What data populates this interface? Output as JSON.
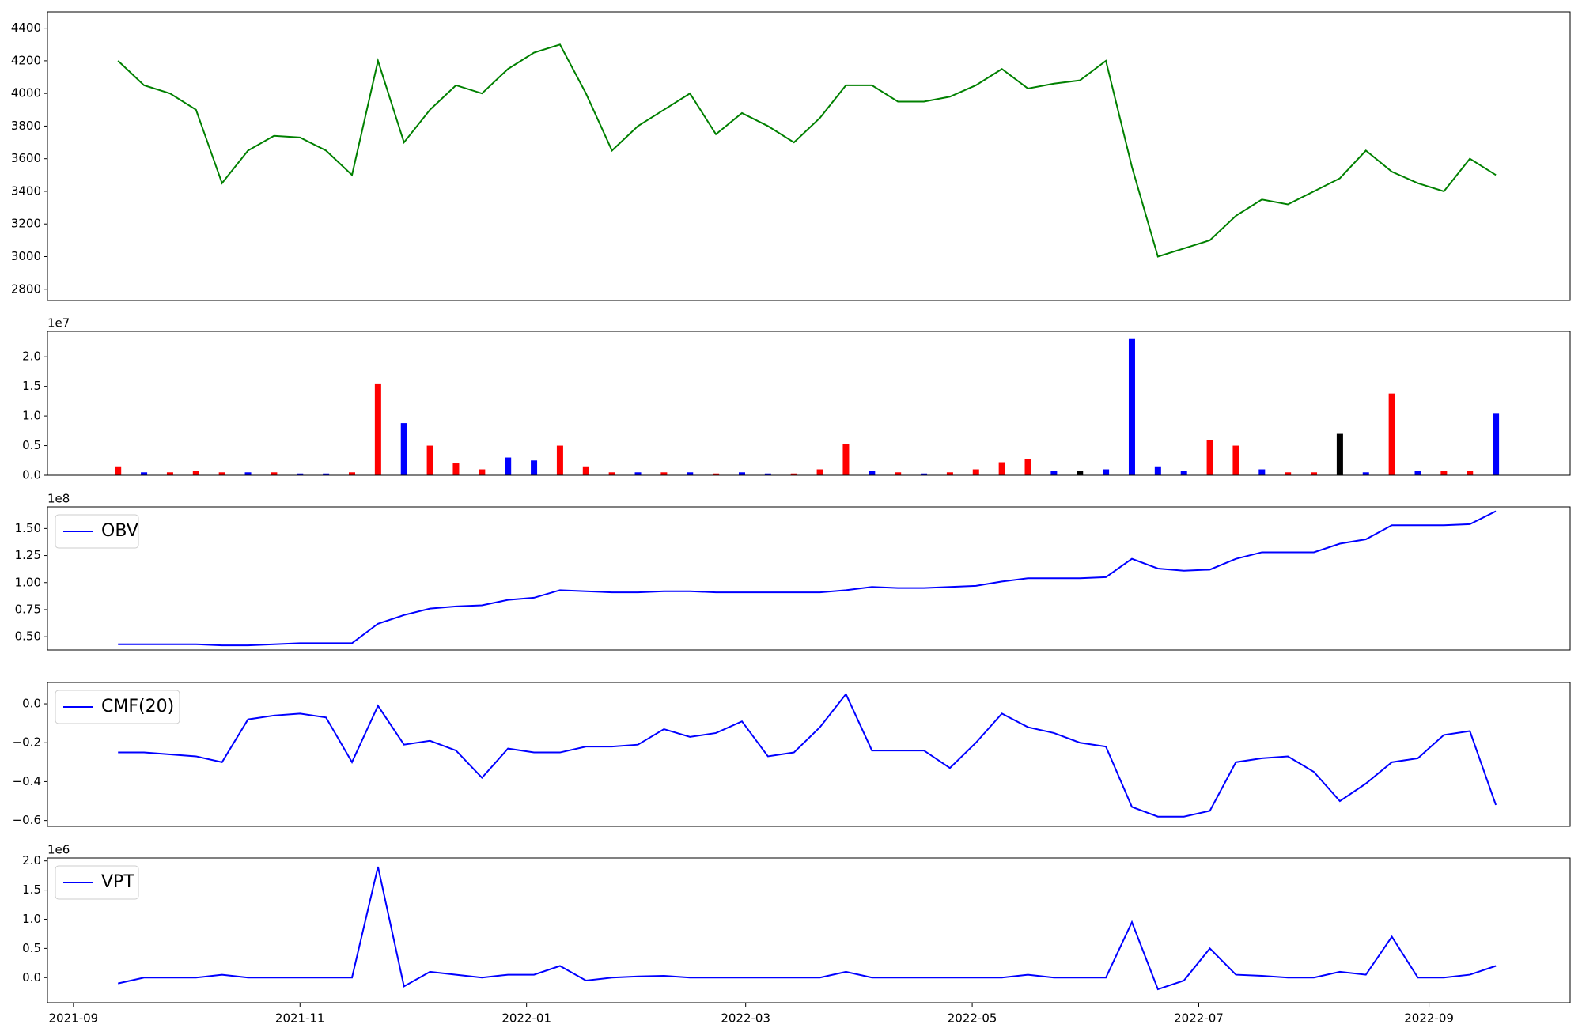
{
  "chart_data": [
    {
      "type": "line",
      "color": "#008000",
      "x": [
        "2021-09-13",
        "2021-09-20",
        "2021-09-27",
        "2021-10-04",
        "2021-10-11",
        "2021-10-18",
        "2021-10-25",
        "2021-11-01",
        "2021-11-08",
        "2021-11-15",
        "2021-11-22",
        "2021-11-29",
        "2021-12-06",
        "2021-12-13",
        "2021-12-20",
        "2021-12-27",
        "2022-01-03",
        "2022-01-10",
        "2022-01-17",
        "2022-01-24",
        "2022-01-31",
        "2022-02-07",
        "2022-02-14",
        "2022-02-21",
        "2022-02-28",
        "2022-03-07",
        "2022-03-14",
        "2022-03-21",
        "2022-03-28",
        "2022-04-04",
        "2022-04-11",
        "2022-04-18",
        "2022-04-25",
        "2022-05-02",
        "2022-05-09",
        "2022-05-16",
        "2022-05-23",
        "2022-05-30",
        "2022-06-06",
        "2022-06-13",
        "2022-06-20",
        "2022-06-27",
        "2022-07-04",
        "2022-07-11",
        "2022-07-18",
        "2022-07-25",
        "2022-08-01",
        "2022-08-08",
        "2022-08-15",
        "2022-08-22",
        "2022-08-29",
        "2022-09-05",
        "2022-09-12",
        "2022-09-19"
      ],
      "values": [
        4200,
        4050,
        4000,
        3900,
        3450,
        3650,
        3740,
        3730,
        3650,
        3500,
        4200,
        3700,
        3900,
        4050,
        4000,
        4150,
        4250,
        4300,
        4000,
        3650,
        3800,
        3900,
        4000,
        3750,
        3880,
        3800,
        3700,
        3850,
        4050,
        4050,
        3950,
        3950,
        3980,
        4050,
        4150,
        4030,
        4060,
        4080,
        4200,
        3550,
        3000,
        3050,
        3100,
        3250,
        3350,
        3320,
        3400,
        3480,
        3650,
        3520,
        3450,
        3400,
        3600,
        3500
      ],
      "xlim": [
        "2021-08-25",
        "2022-10-09"
      ],
      "ylim": [
        2731,
        4500
      ],
      "yticks": [
        2800,
        3000,
        3200,
        3400,
        3600,
        3800,
        4000,
        4200,
        4400
      ]
    },
    {
      "type": "bar",
      "y_offset_label": "1e7",
      "x": [
        "2021-09-13",
        "2021-09-20",
        "2021-09-27",
        "2021-10-04",
        "2021-10-11",
        "2021-10-18",
        "2021-10-25",
        "2021-11-01",
        "2021-11-08",
        "2021-11-15",
        "2021-11-22",
        "2021-11-29",
        "2021-12-06",
        "2021-12-13",
        "2021-12-20",
        "2021-12-27",
        "2022-01-03",
        "2022-01-10",
        "2022-01-17",
        "2022-01-24",
        "2022-01-31",
        "2022-02-07",
        "2022-02-14",
        "2022-02-21",
        "2022-02-28",
        "2022-03-07",
        "2022-03-14",
        "2022-03-21",
        "2022-03-28",
        "2022-04-04",
        "2022-04-11",
        "2022-04-18",
        "2022-04-25",
        "2022-05-02",
        "2022-05-09",
        "2022-05-16",
        "2022-05-23",
        "2022-05-30",
        "2022-06-06",
        "2022-06-13",
        "2022-06-20",
        "2022-06-27",
        "2022-07-04",
        "2022-07-11",
        "2022-07-18",
        "2022-07-25",
        "2022-08-01",
        "2022-08-08",
        "2022-08-15",
        "2022-08-22",
        "2022-08-29",
        "2022-09-05",
        "2022-09-12",
        "2022-09-19"
      ],
      "values": [
        0.15,
        0.05,
        0.05,
        0.08,
        0.05,
        0.05,
        0.05,
        0.03,
        0.03,
        0.05,
        1.55,
        0.88,
        0.5,
        0.2,
        0.1,
        0.3,
        0.25,
        0.5,
        0.15,
        0.05,
        0.05,
        0.05,
        0.05,
        0.03,
        0.05,
        0.03,
        0.03,
        0.1,
        0.53,
        0.08,
        0.05,
        0.03,
        0.05,
        0.1,
        0.22,
        0.28,
        0.08,
        0.08,
        0.1,
        2.3,
        0.15,
        0.08,
        0.6,
        0.5,
        0.1,
        0.05,
        0.05,
        0.7,
        0.05,
        1.38,
        0.08,
        0.08,
        0.08,
        1.05
      ],
      "colors": [
        "#ff0000",
        "#0000ff",
        "#ff0000",
        "#ff0000",
        "#ff0000",
        "#0000ff",
        "#ff0000",
        "#0000ff",
        "#0000ff",
        "#ff0000",
        "#ff0000",
        "#0000ff",
        "#ff0000",
        "#ff0000",
        "#ff0000",
        "#0000ff",
        "#0000ff",
        "#ff0000",
        "#ff0000",
        "#ff0000",
        "#0000ff",
        "#ff0000",
        "#0000ff",
        "#ff0000",
        "#0000ff",
        "#0000ff",
        "#ff0000",
        "#ff0000",
        "#ff0000",
        "#0000ff",
        "#ff0000",
        "#0000ff",
        "#ff0000",
        "#ff0000",
        "#ff0000",
        "#ff0000",
        "#0000ff",
        "#000000",
        "#0000ff",
        "#0000ff",
        "#0000ff",
        "#0000ff",
        "#ff0000",
        "#ff0000",
        "#0000ff",
        "#ff0000",
        "#ff0000",
        "#000000",
        "#0000ff",
        "#ff0000",
        "#0000ff",
        "#ff0000",
        "#ff0000",
        "#0000ff"
      ],
      "xlim": [
        "2021-08-25",
        "2022-10-09"
      ],
      "ylim": [
        0,
        2.43
      ],
      "yticks": [
        {
          "value": 0,
          "label": "0.0"
        },
        {
          "value": 0.5,
          "label": "0.5"
        },
        {
          "value": 1,
          "label": "1.0"
        },
        {
          "value": 1.5,
          "label": "1.5"
        },
        {
          "value": 2,
          "label": "2.0"
        }
      ]
    },
    {
      "type": "line",
      "y_offset_label": "1e8",
      "legend": "upper left",
      "x": [
        "2021-09-13",
        "2021-09-20",
        "2021-09-27",
        "2021-10-04",
        "2021-10-11",
        "2021-10-18",
        "2021-10-25",
        "2021-11-01",
        "2021-11-08",
        "2021-11-15",
        "2021-11-22",
        "2021-11-29",
        "2021-12-06",
        "2021-12-13",
        "2021-12-20",
        "2021-12-27",
        "2022-01-03",
        "2022-01-10",
        "2022-01-17",
        "2022-01-24",
        "2022-01-31",
        "2022-02-07",
        "2022-02-14",
        "2022-02-21",
        "2022-02-28",
        "2022-03-07",
        "2022-03-14",
        "2022-03-21",
        "2022-03-28",
        "2022-04-04",
        "2022-04-11",
        "2022-04-18",
        "2022-04-25",
        "2022-05-02",
        "2022-05-09",
        "2022-05-16",
        "2022-05-23",
        "2022-05-30",
        "2022-06-06",
        "2022-06-13",
        "2022-06-20",
        "2022-06-27",
        "2022-07-04",
        "2022-07-11",
        "2022-07-18",
        "2022-07-25",
        "2022-08-01",
        "2022-08-08",
        "2022-08-15",
        "2022-08-22",
        "2022-08-29",
        "2022-09-05",
        "2022-09-12",
        "2022-09-19"
      ],
      "series": [
        {
          "name": "OBV",
          "color": "#0000ff",
          "values": [
            0.43,
            0.43,
            0.43,
            0.43,
            0.42,
            0.42,
            0.43,
            0.44,
            0.44,
            0.44,
            0.62,
            0.7,
            0.76,
            0.78,
            0.79,
            0.84,
            0.86,
            0.93,
            0.92,
            0.91,
            0.91,
            0.92,
            0.92,
            0.91,
            0.91,
            0.91,
            0.91,
            0.91,
            0.93,
            0.96,
            0.95,
            0.95,
            0.96,
            0.97,
            1.01,
            1.04,
            1.04,
            1.04,
            1.05,
            1.22,
            1.13,
            1.11,
            1.12,
            1.22,
            1.28,
            1.28,
            1.28,
            1.36,
            1.4,
            1.53,
            1.53,
            1.53,
            1.54,
            1.66
          ]
        }
      ],
      "xlim": [
        "2021-08-25",
        "2022-10-09"
      ],
      "ylim": [
        0.377,
        1.7
      ],
      "yticks": [
        {
          "value": 0.5,
          "label": "0.50"
        },
        {
          "value": 0.75,
          "label": "0.75"
        },
        {
          "value": 1,
          "label": "1.00"
        },
        {
          "value": 1.25,
          "label": "1.25"
        },
        {
          "value": 1.5,
          "label": "1.50"
        }
      ]
    },
    {
      "type": "line",
      "legend": "upper left",
      "x": [
        "2021-09-13",
        "2021-09-20",
        "2021-09-27",
        "2021-10-04",
        "2021-10-11",
        "2021-10-18",
        "2021-10-25",
        "2021-11-01",
        "2021-11-08",
        "2021-11-15",
        "2021-11-22",
        "2021-11-29",
        "2021-12-06",
        "2021-12-13",
        "2021-12-20",
        "2021-12-27",
        "2022-01-03",
        "2022-01-10",
        "2022-01-17",
        "2022-01-24",
        "2022-01-31",
        "2022-02-07",
        "2022-02-14",
        "2022-02-21",
        "2022-02-28",
        "2022-03-07",
        "2022-03-14",
        "2022-03-21",
        "2022-03-28",
        "2022-04-04",
        "2022-04-11",
        "2022-04-18",
        "2022-04-25",
        "2022-05-02",
        "2022-05-09",
        "2022-05-16",
        "2022-05-23",
        "2022-05-30",
        "2022-06-06",
        "2022-06-13",
        "2022-06-20",
        "2022-06-27",
        "2022-07-04",
        "2022-07-11",
        "2022-07-18",
        "2022-07-25",
        "2022-08-01",
        "2022-08-08",
        "2022-08-15",
        "2022-08-22",
        "2022-08-29",
        "2022-09-05",
        "2022-09-12",
        "2022-09-19"
      ],
      "series": [
        {
          "name": "CMF(20)",
          "color": "#0000ff",
          "values": [
            -0.25,
            -0.25,
            -0.26,
            -0.27,
            -0.3,
            -0.08,
            -0.06,
            -0.05,
            -0.07,
            -0.3,
            -0.01,
            -0.21,
            -0.19,
            -0.24,
            -0.38,
            -0.23,
            -0.25,
            -0.25,
            -0.22,
            -0.22,
            -0.21,
            -0.13,
            -0.17,
            -0.15,
            -0.09,
            -0.27,
            -0.25,
            -0.12,
            0.05,
            -0.24,
            -0.24,
            -0.24,
            -0.33,
            -0.2,
            -0.05,
            -0.12,
            -0.15,
            -0.2,
            -0.22,
            -0.53,
            -0.58,
            -0.58,
            -0.55,
            -0.3,
            -0.28,
            -0.27,
            -0.35,
            -0.5,
            -0.41,
            -0.3,
            -0.28,
            -0.16,
            -0.14,
            -0.52
          ]
        }
      ],
      "xlim": [
        "2021-08-25",
        "2022-10-09"
      ],
      "ylim": [
        -0.63,
        0.11
      ],
      "yticks": [
        {
          "value": -0.6,
          "label": "−0.6"
        },
        {
          "value": -0.4,
          "label": "−0.4"
        },
        {
          "value": -0.2,
          "label": "−0.2"
        },
        {
          "value": 0,
          "label": "0.0"
        }
      ]
    },
    {
      "type": "line",
      "y_offset_label": "1e6",
      "legend": "upper left",
      "x": [
        "2021-09-13",
        "2021-09-20",
        "2021-09-27",
        "2021-10-04",
        "2021-10-11",
        "2021-10-18",
        "2021-10-25",
        "2021-11-01",
        "2021-11-08",
        "2021-11-15",
        "2021-11-22",
        "2021-11-29",
        "2021-12-06",
        "2021-12-13",
        "2021-12-20",
        "2021-12-27",
        "2022-01-03",
        "2022-01-10",
        "2022-01-17",
        "2022-01-24",
        "2022-01-31",
        "2022-02-07",
        "2022-02-14",
        "2022-02-21",
        "2022-02-28",
        "2022-03-07",
        "2022-03-14",
        "2022-03-21",
        "2022-03-28",
        "2022-04-04",
        "2022-04-11",
        "2022-04-18",
        "2022-04-25",
        "2022-05-02",
        "2022-05-09",
        "2022-05-16",
        "2022-05-23",
        "2022-05-30",
        "2022-06-06",
        "2022-06-13",
        "2022-06-20",
        "2022-06-27",
        "2022-07-04",
        "2022-07-11",
        "2022-07-18",
        "2022-07-25",
        "2022-08-01",
        "2022-08-08",
        "2022-08-15",
        "2022-08-22",
        "2022-08-29",
        "2022-09-05",
        "2022-09-12",
        "2022-09-19"
      ],
      "series": [
        {
          "name": "VPT",
          "color": "#0000ff",
          "values": [
            -0.1,
            0,
            0,
            0,
            0.05,
            0,
            0,
            0,
            0,
            0,
            1.9,
            -0.15,
            0.1,
            0.05,
            0,
            0.05,
            0.05,
            0.2,
            -0.05,
            0,
            0.02,
            0.03,
            0,
            0,
            0,
            0,
            0,
            0,
            0.1,
            0,
            0,
            0,
            0,
            0,
            0,
            0.05,
            0,
            0,
            0,
            0.95,
            -0.2,
            -0.05,
            0.5,
            0.05,
            0.03,
            0,
            0,
            0.1,
            0.05,
            0.7,
            0,
            0,
            0.05,
            0.2
          ]
        }
      ],
      "xlim": [
        "2021-08-25",
        "2022-10-09"
      ],
      "ylim": [
        -0.43,
        2.05
      ],
      "yticks": [
        {
          "value": 0,
          "label": "0.0"
        },
        {
          "value": 0.5,
          "label": "0.5"
        },
        {
          "value": 1,
          "label": "1.0"
        },
        {
          "value": 1.5,
          "label": "1.5"
        },
        {
          "value": 2,
          "label": "2.0"
        }
      ],
      "xticks": [
        {
          "value": "2021-09-01",
          "label": "2021-09"
        },
        {
          "value": "2021-11-01",
          "label": "2021-11"
        },
        {
          "value": "2022-01-01",
          "label": "2022-01"
        },
        {
          "value": "2022-03-01",
          "label": "2022-03"
        },
        {
          "value": "2022-05-01",
          "label": "2022-05"
        },
        {
          "value": "2022-07-01",
          "label": "2022-07"
        },
        {
          "value": "2022-09-01",
          "label": "2022-09"
        }
      ]
    }
  ]
}
